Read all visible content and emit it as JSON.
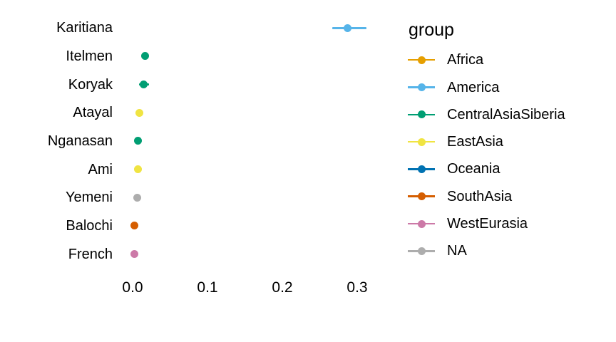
{
  "figure": {
    "background": "#ffffff",
    "text_color": "#000000"
  },
  "chart_data": {
    "type": "scatter",
    "subtype": "horizontal-dot-plot-with-error-bars",
    "title": "",
    "xlabel": "",
    "ylabel": "",
    "grid": false,
    "legend_position": "right",
    "xlim": [
      -0.02,
      0.36
    ],
    "x_ticks": {
      "values": [
        0.0,
        0.1,
        0.2,
        0.3
      ],
      "labels": [
        "0.0",
        "0.1",
        "0.2",
        "0.3"
      ]
    },
    "categories": [
      "Karitiana",
      "Itelmen",
      "Koryak",
      "Atayal",
      "Nganasan",
      "Ami",
      "Yemeni",
      "Balochi",
      "French"
    ],
    "points": [
      {
        "label": "Karitiana",
        "group": "America",
        "value": 0.287,
        "ci": [
          0.267,
          0.312
        ]
      },
      {
        "label": "Itelmen",
        "group": "CentralAsiaSiberia",
        "value": 0.017,
        "ci": null
      },
      {
        "label": "Koryak",
        "group": "CentralAsiaSiberia",
        "value": 0.015,
        "ci": [
          0.009,
          0.022
        ]
      },
      {
        "label": "Atayal",
        "group": "EastAsia",
        "value": 0.009,
        "ci": null
      },
      {
        "label": "Nganasan",
        "group": "CentralAsiaSiberia",
        "value": 0.007,
        "ci": null
      },
      {
        "label": "Ami",
        "group": "EastAsia",
        "value": 0.007,
        "ci": null
      },
      {
        "label": "Yemeni",
        "group": "NA",
        "value": 0.006,
        "ci": null
      },
      {
        "label": "Balochi",
        "group": "SouthAsia",
        "value": 0.002,
        "ci": null
      },
      {
        "label": "French",
        "group": "WestEurasia",
        "value": 0.002,
        "ci": null
      }
    ],
    "group_colors": {
      "Africa": "#E69F00",
      "America": "#56B4E9",
      "CentralAsiaSiberia": "#009E73",
      "EastAsia": "#F0E442",
      "Oceania": "#0072B2",
      "SouthAsia": "#D55E00",
      "WestEurasia": "#CC79A7",
      "NA": "#ADADAD"
    },
    "legend": {
      "title": "group",
      "entries": [
        {
          "label": "Africa",
          "color": "#E69F00"
        },
        {
          "label": "America",
          "color": "#56B4E9"
        },
        {
          "label": "CentralAsiaSiberia",
          "color": "#009E73"
        },
        {
          "label": "EastAsia",
          "color": "#F0E442"
        },
        {
          "label": "Oceania",
          "color": "#0072B2"
        },
        {
          "label": "SouthAsia",
          "color": "#D55E00"
        },
        {
          "label": "WestEurasia",
          "color": "#CC79A7"
        },
        {
          "label": "NA",
          "color": "#ADADAD"
        }
      ]
    }
  }
}
